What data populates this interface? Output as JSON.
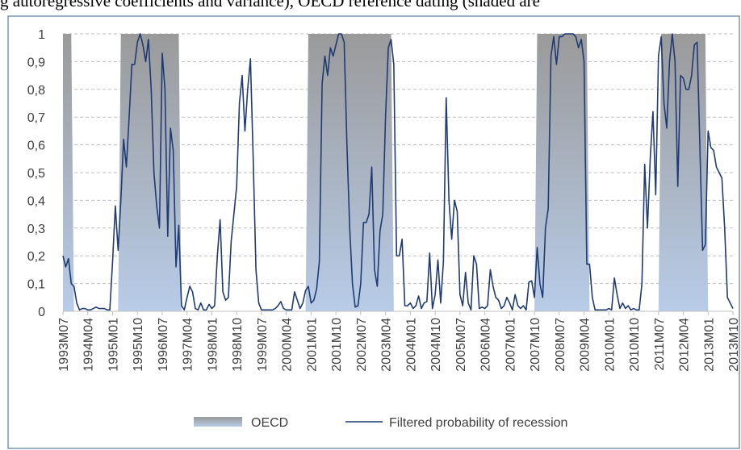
{
  "chart_data": {
    "type": "line",
    "title": "g autoregressive coefficients and variance), OECD reference dating (shaded are",
    "categories": [
      "1993M07",
      null,
      null,
      null,
      null,
      null,
      null,
      null,
      null,
      "1994M04",
      null,
      null,
      null,
      null,
      null,
      null,
      null,
      null,
      "1995M01",
      null,
      null,
      null,
      null,
      null,
      null,
      null,
      null,
      "1995M10",
      null,
      null,
      null,
      null,
      null,
      null,
      null,
      null,
      "1996M07",
      null,
      null,
      null,
      null,
      null,
      null,
      null,
      null,
      "1997M04",
      null,
      null,
      null,
      null,
      null,
      null,
      null,
      null,
      "1998M01",
      null,
      null,
      null,
      null,
      null,
      null,
      null,
      null,
      "1998M10",
      null,
      null,
      null,
      null,
      null,
      null,
      null,
      null,
      "1999M07",
      null,
      null,
      null,
      null,
      null,
      null,
      null,
      null,
      "2000M04",
      null,
      null,
      null,
      null,
      null,
      null,
      null,
      null,
      "2001M01",
      null,
      null,
      null,
      null,
      null,
      null,
      null,
      null,
      "2001M10",
      null,
      null,
      null,
      null,
      null,
      null,
      null,
      null,
      "2002M07",
      null,
      null,
      null,
      null,
      null,
      null,
      null,
      null,
      "2003M04",
      null,
      null,
      null,
      null,
      null,
      null,
      null,
      null,
      "2004M01",
      null,
      null,
      null,
      null,
      null,
      null,
      null,
      null,
      "2004M10",
      null,
      null,
      null,
      null,
      null,
      null,
      null,
      null,
      "2005M07",
      null,
      null,
      null,
      null,
      null,
      null,
      null,
      null,
      "2006M04",
      null,
      null,
      null,
      null,
      null,
      null,
      null,
      null,
      "2007M01",
      null,
      null,
      null,
      null,
      null,
      null,
      null,
      null,
      "2007M10",
      null,
      null,
      null,
      null,
      null,
      null,
      null,
      null,
      "2008M07",
      null,
      null,
      null,
      null,
      null,
      null,
      null,
      null,
      "2009M04",
      null,
      null,
      null,
      null,
      null,
      null,
      null,
      null,
      "2010M01",
      null,
      null,
      null,
      null,
      null,
      null,
      null,
      null,
      "2010M10",
      null,
      null,
      null,
      null,
      null,
      null,
      null,
      null,
      "2011M07",
      null,
      null,
      null,
      null,
      null,
      null,
      null,
      null,
      "2012M04",
      null,
      null,
      null,
      null,
      null,
      null,
      null,
      null,
      "2013M01",
      null,
      null,
      null,
      null,
      null,
      null,
      null,
      null,
      "2013M10"
    ],
    "series": [
      {
        "name": "OECD",
        "type": "area",
        "color": "#9a9a9a",
        "values": [
          1,
          1,
          1,
          1,
          0,
          0,
          0,
          0,
          0,
          0,
          0,
          0,
          0,
          0,
          0,
          0,
          0,
          0,
          0,
          0,
          0,
          1,
          1,
          1,
          1,
          1,
          1,
          1,
          1,
          1,
          1,
          1,
          1,
          1,
          1,
          1,
          1,
          1,
          1,
          1,
          1,
          1,
          1,
          0,
          0,
          0,
          0,
          0,
          0,
          0,
          0,
          0,
          0,
          0,
          0,
          0,
          0,
          0,
          0,
          0,
          0,
          0,
          0,
          0,
          0,
          0,
          0,
          0,
          0,
          0,
          0,
          0,
          0,
          0,
          0,
          0,
          0,
          0,
          0,
          0,
          0,
          0,
          0,
          0,
          0,
          0,
          0,
          0,
          0,
          1,
          1,
          1,
          1,
          1,
          1,
          1,
          1,
          1,
          1,
          1,
          1,
          1,
          1,
          1,
          1,
          1,
          1,
          1,
          1,
          1,
          1,
          1,
          1,
          1,
          1,
          1,
          1,
          1,
          1,
          1,
          0,
          0,
          0,
          0,
          0,
          0,
          0,
          0,
          0,
          0,
          0,
          0,
          0,
          0,
          0,
          0,
          0,
          0,
          0,
          0,
          0,
          0,
          0,
          0,
          0,
          0,
          0,
          0,
          0,
          0,
          0,
          0,
          0,
          0,
          0,
          0,
          0,
          0,
          0,
          0,
          0,
          0,
          0,
          0,
          0,
          0,
          0,
          0,
          0,
          0,
          0,
          0,
          1,
          1,
          1,
          1,
          1,
          1,
          1,
          1,
          1,
          1,
          1,
          1,
          1,
          1,
          1,
          1,
          1,
          1,
          1,
          0,
          0,
          0,
          0,
          0,
          0,
          0,
          0,
          0,
          0,
          0,
          0,
          0,
          0,
          0,
          0,
          0,
          0,
          0,
          0,
          0,
          0,
          0,
          0,
          0,
          0,
          1,
          1,
          1,
          1,
          1,
          1,
          1,
          1,
          1,
          1,
          1,
          1,
          1,
          1,
          1,
          1,
          1,
          0,
          0,
          0,
          0,
          0,
          0,
          0,
          0,
          0,
          0
        ]
      },
      {
        "name": "Filtered probability of recession",
        "type": "line",
        "color": "#1f3b73",
        "values": [
          0.2,
          0.16,
          0.19,
          0.1,
          0.09,
          0.03,
          0.005,
          0.01,
          0.01,
          0.005,
          0.005,
          0.01,
          0.015,
          0.01,
          0.01,
          0.01,
          0.005,
          0.005,
          0.18,
          0.38,
          0.22,
          0.4,
          0.62,
          0.52,
          0.7,
          0.89,
          0.89,
          0.97,
          1.0,
          0.96,
          0.9,
          0.98,
          0.8,
          0.5,
          0.38,
          0.3,
          0.93,
          0.8,
          0.27,
          0.66,
          0.58,
          0.16,
          0.31,
          0.02,
          0.005,
          0.05,
          0.09,
          0.07,
          0.01,
          0.005,
          0.03,
          0.005,
          0.005,
          0.025,
          0.01,
          0.02,
          0.2,
          0.33,
          0.07,
          0.04,
          0.05,
          0.25,
          0.35,
          0.45,
          0.75,
          0.85,
          0.65,
          0.8,
          0.91,
          0.55,
          0.15,
          0.03,
          0.005,
          0.005,
          0.005,
          0.005,
          0.005,
          0.01,
          0.02,
          0.035,
          0.01,
          0.005,
          0.005,
          0.005,
          0.07,
          0.04,
          0.01,
          0.03,
          0.075,
          0.09,
          0.03,
          0.04,
          0.08,
          0.18,
          0.82,
          0.92,
          0.85,
          0.95,
          0.92,
          0.96,
          1.0,
          1.0,
          0.97,
          0.6,
          0.3,
          0.1,
          0.015,
          0.02,
          0.1,
          0.32,
          0.32,
          0.35,
          0.52,
          0.15,
          0.09,
          0.29,
          0.35,
          0.7,
          0.95,
          0.98,
          0.89,
          0.2,
          0.2,
          0.26,
          0.02,
          0.02,
          0.03,
          0.01,
          0.02,
          0.055,
          0.01,
          0.03,
          0.035,
          0.21,
          0.01,
          0.06,
          0.185,
          0.03,
          0.18,
          0.77,
          0.4,
          0.26,
          0.4,
          0.36,
          0.06,
          0.02,
          0.14,
          0.03,
          0.005,
          0.2,
          0.17,
          0.01,
          0.015,
          0.01,
          0.02,
          0.15,
          0.09,
          0.05,
          0.04,
          0.01,
          0.02,
          0.05,
          0.03,
          0.005,
          0.06,
          0.02,
          0.01,
          0.02,
          0.005,
          0.105,
          0.11,
          0.05,
          0.23,
          0.1,
          0.05,
          0.3,
          0.37,
          0.92,
          0.99,
          0.89,
          0.99,
          0.99,
          1.0,
          1.0,
          1.0,
          1.0,
          0.99,
          0.95,
          0.98,
          0.9,
          0.17,
          0.17,
          0.05,
          0.005,
          0.005,
          0.005,
          0.005,
          0.005,
          0.01,
          0.005,
          0.12,
          0.06,
          0.01,
          0.03,
          0.01,
          0.02,
          0.005,
          0.01,
          0.005,
          0.005,
          0.1,
          0.53,
          0.3,
          0.55,
          0.72,
          0.42,
          0.92,
          0.99,
          0.75,
          0.66,
          0.9,
          1.0,
          0.9,
          0.45,
          0.85,
          0.84,
          0.8,
          0.8,
          0.85,
          0.96,
          0.97,
          0.6,
          0.22,
          0.24,
          0.65,
          0.59,
          0.58,
          0.52,
          0.5,
          0.48,
          0.3,
          0.05,
          0.03,
          0.01
        ]
      }
    ],
    "ylim": [
      0,
      1
    ],
    "yticks": [
      0,
      {
        "value": 0.1,
        "label": "0,1"
      },
      {
        "value": 0.2,
        "label": "0,2"
      },
      {
        "value": 0.3,
        "label": "0,3"
      },
      {
        "value": 0.4,
        "label": "0,4"
      },
      {
        "value": 0.5,
        "label": "0,5"
      },
      {
        "value": 0.6,
        "label": "0,6"
      },
      {
        "value": 0.7,
        "label": "0,7"
      },
      {
        "value": 0.8,
        "label": "0,8"
      },
      {
        "value": 0.9,
        "label": "0,9"
      },
      1
    ],
    "grid": true,
    "legend": "bottom"
  }
}
